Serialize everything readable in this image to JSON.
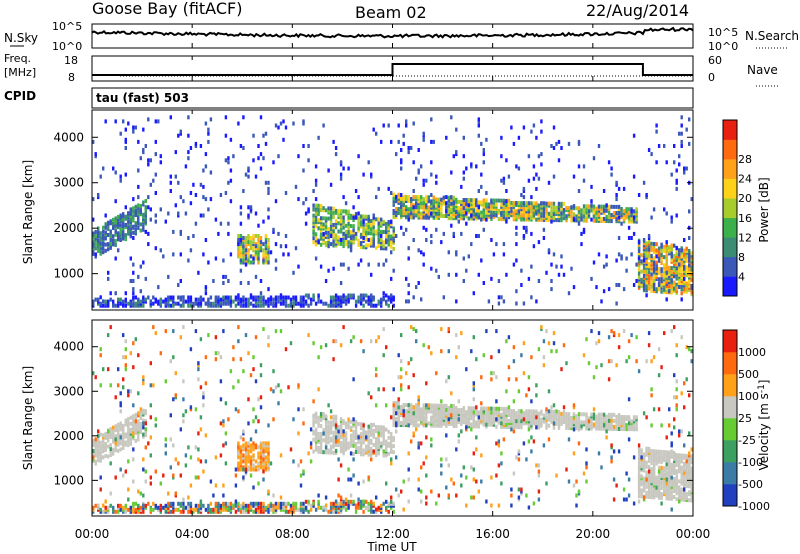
{
  "header": {
    "station": "Goose Bay (fitACF)",
    "beam": "Beam 02",
    "date": "22/Aug/2014"
  },
  "noise_panel": {
    "left_label": "N.Sky",
    "left_ticks": [
      "10^5",
      "10^0"
    ],
    "right_ticks": [
      "10^5",
      "10^0"
    ],
    "right_label": "N.Search"
  },
  "freq_panel": {
    "left_label_top": "Freq.",
    "left_label_bottom": "[MHz]",
    "left_ticks": [
      "18",
      "8"
    ],
    "right_ticks": [
      "60",
      "0"
    ],
    "right_label": "Nave",
    "cpid_label": "CPID",
    "cpid_text": "tau (fast) 503"
  },
  "x_axis": {
    "label": "Time UT",
    "ticks": [
      "00:00",
      "04:00",
      "08:00",
      "12:00",
      "16:00",
      "20:00",
      "00:00"
    ]
  },
  "chart_data": [
    {
      "type": "heatmap",
      "title": "",
      "ylabel": "Slant Range [km]",
      "y_ticks": [
        "1000",
        "2000",
        "3000",
        "4000"
      ],
      "ylim": [
        200,
        4600
      ],
      "xlim_hours": [
        0,
        24
      ],
      "colorbar": {
        "label": "Power [dB]",
        "ticks": [
          "4",
          "8",
          "12",
          "16",
          "20",
          "24",
          "28"
        ],
        "colors": [
          "#1a1aff",
          "#3a58b8",
          "#3c8c74",
          "#3cb04a",
          "#a6cc2e",
          "#ffd21a",
          "#ffa21a",
          "#ff6a10",
          "#e82010"
        ]
      }
    },
    {
      "type": "heatmap",
      "title": "",
      "ylabel": "Slant Range [km]",
      "y_ticks": [
        "1000",
        "2000",
        "3000",
        "4000"
      ],
      "ylim": [
        200,
        4600
      ],
      "xlim_hours": [
        0,
        24
      ],
      "colorbar": {
        "label": "Velocity [m s-1]",
        "ticks": [
          "1000",
          "500",
          "100",
          "25",
          "-25",
          "-100",
          "-500",
          "-1000"
        ],
        "colors": [
          "#2040c0",
          "#3a7ca6",
          "#3ca060",
          "#66cc33",
          "#c8c8c0",
          "#ffa21a",
          "#ff6a10",
          "#e82010"
        ]
      }
    }
  ]
}
